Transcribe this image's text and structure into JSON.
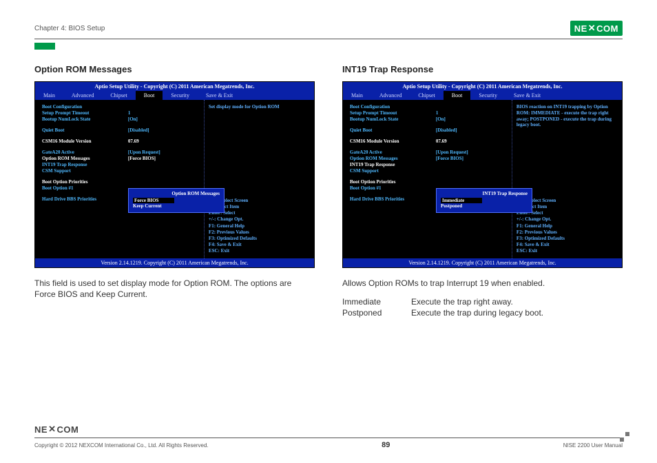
{
  "header": {
    "chapter": "Chapter 4: BIOS Setup",
    "brand": "NEXCOM"
  },
  "left": {
    "title": "Option ROM Messages",
    "bios": {
      "title_bar": "Aptio Setup Utility - Copyright (C) 2011 American Megatrends, Inc.",
      "menu": [
        "Main",
        "Advanced",
        "Chipset",
        "Boot",
        "Security",
        "Save & Exit"
      ],
      "active_menu_index": 3,
      "help": "Set display mode for Option ROM",
      "keys": [
        "→←: Select Screen",
        "↑↓: Select Item",
        "Enter: Select",
        "+/-: Change Opt.",
        "F1: General Help",
        "F2: Previous Values",
        "F3: Optimized Defaults",
        "F4: Save & Exit",
        "ESC: Exit"
      ],
      "footer": "Version 2.14.1219. Copyright (C) 2011 American Megatrends, Inc.",
      "rows": [
        {
          "lbl": "Boot Configuration",
          "cls": "blue",
          "val": ""
        },
        {
          "lbl": "Setup Prompt Timeout",
          "cls": "blue",
          "val": "1",
          "vcls": "blue"
        },
        {
          "lbl": "Bootup NumLock State",
          "cls": "blue",
          "val": "[On]",
          "vcls": "blue"
        },
        {
          "spacer": true
        },
        {
          "lbl": "Quiet Boot",
          "cls": "blue",
          "val": "[Disabled]",
          "vcls": "blue"
        },
        {
          "spacer": true
        },
        {
          "lbl": "CSM16 Module Version",
          "cls": "white",
          "val": "07.69",
          "vcls": "white"
        },
        {
          "spacer": true
        },
        {
          "lbl": "GateA20 Active",
          "cls": "blue",
          "val": "[Upon Request]",
          "vcls": "blue"
        },
        {
          "lbl": "Option ROM Messages",
          "cls": "white",
          "val": "[Force BIOS]",
          "vcls": "white"
        },
        {
          "lbl": "INT19 Trap Response",
          "cls": "blue",
          "val": "",
          "vcls": "blue"
        },
        {
          "lbl": "CSM Support",
          "cls": "blue",
          "val": "",
          "vcls": "blue"
        },
        {
          "spacer": true
        },
        {
          "lbl": "Boot Option Priorities",
          "cls": "white",
          "val": "",
          "vcls": ""
        },
        {
          "lbl": "Boot Option #1",
          "cls": "blue",
          "val": "",
          "vcls": ""
        },
        {
          "spacer": true
        },
        {
          "lbl": "Hard Drive BBS Priorities",
          "cls": "blue",
          "val": "",
          "vcls": ""
        }
      ],
      "popup": {
        "title": "Option ROM Messages",
        "selected": "Force BIOS",
        "other": "Keep Current"
      }
    },
    "desc": "This field is used to set display mode for Option ROM. The options are Force BIOS and Keep Current."
  },
  "right": {
    "title": "INT19 Trap Response",
    "bios": {
      "title_bar": "Aptio Setup Utility - Copyright (C) 2011 American Megatrends, Inc.",
      "menu": [
        "Main",
        "Advanced",
        "Chipset",
        "Boot",
        "Security",
        "Save & Exit"
      ],
      "active_menu_index": 3,
      "help": "BIOS reaction on INT19 trapping by Option ROM: IMMEDIATE - execute the trap right away; POSTPONED - execute the trap during legacy boot.",
      "keys": [
        "→←: Select Screen",
        "↑↓: Select Item",
        "Enter: Select",
        "+/-: Change Opt.",
        "F1: General Help",
        "F2: Previous Values",
        "F3: Optimized Defaults",
        "F4: Save & Exit",
        "ESC: Exit"
      ],
      "footer": "Version 2.14.1219. Copyright (C) 2011 American Megatrends, Inc.",
      "rows": [
        {
          "lbl": "Boot Configuration",
          "cls": "blue",
          "val": ""
        },
        {
          "lbl": "Setup Prompt Timeout",
          "cls": "blue",
          "val": "1",
          "vcls": "blue"
        },
        {
          "lbl": "Bootup NumLock State",
          "cls": "blue",
          "val": "[On]",
          "vcls": "blue"
        },
        {
          "spacer": true
        },
        {
          "lbl": "Quiet Boot",
          "cls": "blue",
          "val": "[Disabled]",
          "vcls": "blue"
        },
        {
          "spacer": true
        },
        {
          "lbl": "CSM16 Module Version",
          "cls": "white",
          "val": "07.69",
          "vcls": "white"
        },
        {
          "spacer": true
        },
        {
          "lbl": "GateA20 Active",
          "cls": "blue",
          "val": "[Upon Request]",
          "vcls": "blue"
        },
        {
          "lbl": "Option ROM Messages",
          "cls": "blue",
          "val": "[Force BIOS]",
          "vcls": "blue"
        },
        {
          "lbl": "INT19 Trap Response",
          "cls": "white",
          "val": "",
          "vcls": "white"
        },
        {
          "lbl": "CSM Support",
          "cls": "blue",
          "val": "",
          "vcls": "blue"
        },
        {
          "spacer": true
        },
        {
          "lbl": "Boot Option Priorities",
          "cls": "white",
          "val": "",
          "vcls": ""
        },
        {
          "lbl": "Boot Option #1",
          "cls": "blue",
          "val": "",
          "vcls": ""
        },
        {
          "spacer": true
        },
        {
          "lbl": "Hard Drive BBS Priorities",
          "cls": "blue",
          "val": "",
          "vcls": ""
        }
      ],
      "popup": {
        "title": "INT19 Trap Response",
        "selected": "Immediate",
        "other": "Postponed"
      }
    },
    "desc": "Allows Option ROMs to trap Interrupt 19 when enabled.",
    "options": [
      {
        "k": "Immediate",
        "v": "Execute the trap right away."
      },
      {
        "k": "Postponed",
        "v": "Execute the trap during legacy boot."
      }
    ]
  },
  "footer": {
    "copyright": "Copyright © 2012 NEXCOM International Co., Ltd. All Rights Reserved.",
    "page": "89",
    "doc": "NISE 2200 User Manual"
  }
}
